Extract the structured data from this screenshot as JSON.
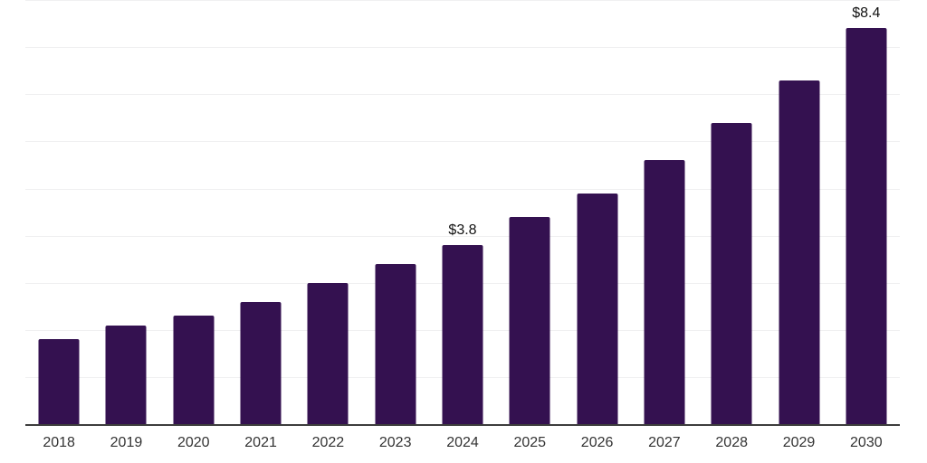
{
  "chart_data": {
    "type": "bar",
    "title": "",
    "xlabel": "",
    "ylabel": "",
    "categories": [
      "2018",
      "2019",
      "2020",
      "2021",
      "2022",
      "2023",
      "2024",
      "2025",
      "2026",
      "2027",
      "2028",
      "2029",
      "2030"
    ],
    "values": [
      1.8,
      2.1,
      2.3,
      2.6,
      3.0,
      3.4,
      3.8,
      4.4,
      4.9,
      5.6,
      6.4,
      7.3,
      8.4
    ],
    "value_labels": {
      "2024": "$3.8",
      "2030": "$8.4"
    },
    "ylim": [
      0,
      9
    ],
    "gridline_step": 1,
    "grid": "horizontal-only",
    "legend_position": "none",
    "y_axis_tick_labels": "none",
    "bar_color": "#341150",
    "axis_color": "#3d3d3d",
    "gridline_color": "#f0f0f1",
    "tick_label_color": "#333333",
    "value_label_color": "#111111",
    "background_color": "#ffffff"
  }
}
